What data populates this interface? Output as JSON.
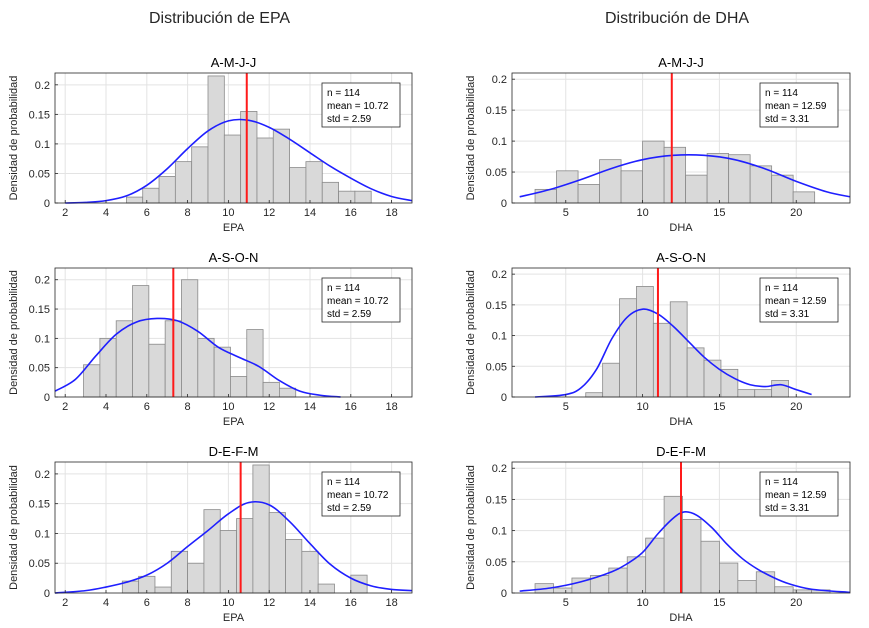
{
  "titles": {
    "left": "Distribución de EPA",
    "right": "Distribución de DHA"
  },
  "chart_data": [
    {
      "type": "bar",
      "title": "A-M-J-J",
      "xlabel": "EPA",
      "ylabel": "Densidad de probabilidad",
      "xlim": [
        1.5,
        19
      ],
      "ylim": [
        0,
        0.22
      ],
      "xticks": [
        2,
        4,
        6,
        8,
        10,
        12,
        14,
        16,
        18
      ],
      "yticks": [
        0,
        0.05,
        0.1,
        0.15,
        0.2
      ],
      "bin_edges": [
        5,
        5.8,
        6.6,
        7.4,
        8.2,
        9.0,
        9.8,
        10.6,
        11.4,
        12.2,
        13.0,
        13.8,
        14.6,
        15.4,
        16.2,
        17.0
      ],
      "values": [
        0.01,
        0.025,
        0.045,
        0.07,
        0.095,
        0.215,
        0.115,
        0.155,
        0.11,
        0.125,
        0.06,
        0.07,
        0.035,
        0.02,
        0.02
      ],
      "kde": {
        "x": [
          2,
          3,
          4,
          5,
          6,
          7,
          8,
          9,
          10,
          11,
          12,
          13,
          14,
          15,
          16,
          17,
          18,
          19
        ],
        "y": [
          0,
          0.001,
          0.004,
          0.012,
          0.03,
          0.058,
          0.092,
          0.122,
          0.139,
          0.14,
          0.128,
          0.108,
          0.085,
          0.062,
          0.042,
          0.024,
          0.011,
          0.004
        ]
      },
      "mean_line": 10.9,
      "stats": [
        "n = 114",
        "mean = 10.72",
        "std = 2.59"
      ]
    },
    {
      "type": "bar",
      "title": "A-M-J-J",
      "xlabel": "DHA",
      "ylabel": "Densidad de probabilidad",
      "xlim": [
        1.5,
        23.5
      ],
      "ylim": [
        0,
        0.21
      ],
      "xticks": [
        5,
        10,
        15,
        20
      ],
      "yticks": [
        0,
        0.05,
        0.1,
        0.15,
        0.2
      ],
      "bin_edges": [
        3,
        4.4,
        5.8,
        7.2,
        8.6,
        10.0,
        11.4,
        12.8,
        14.2,
        15.6,
        17.0,
        18.4,
        19.8,
        21.2
      ],
      "values": [
        0.022,
        0.052,
        0.03,
        0.07,
        0.052,
        0.1,
        0.09,
        0.045,
        0.08,
        0.078,
        0.06,
        0.045,
        0.018,
        0.021
      ],
      "kde": {
        "x": [
          2,
          4,
          6,
          8,
          10,
          12,
          14,
          16,
          18,
          20,
          22,
          23.5
        ],
        "y": [
          0.01,
          0.022,
          0.038,
          0.056,
          0.07,
          0.077,
          0.077,
          0.07,
          0.055,
          0.035,
          0.018,
          0.01
        ]
      },
      "mean_line": 11.9,
      "stats": [
        "n = 114",
        "mean = 12.59",
        "std = 3.31"
      ]
    },
    {
      "type": "bar",
      "title": "A-S-O-N",
      "xlabel": "EPA",
      "ylabel": "Densidad de probabilidad",
      "xlim": [
        1.5,
        19
      ],
      "ylim": [
        0,
        0.22
      ],
      "xticks": [
        2,
        4,
        6,
        8,
        10,
        12,
        14,
        16,
        18
      ],
      "yticks": [
        0,
        0.05,
        0.1,
        0.15,
        0.2
      ],
      "bin_edges": [
        2.9,
        3.7,
        4.5,
        5.3,
        6.1,
        6.9,
        7.7,
        8.5,
        9.3,
        10.1,
        10.9,
        11.7,
        12.5,
        13.3
      ],
      "values": [
        0.055,
        0.1,
        0.13,
        0.19,
        0.09,
        0.13,
        0.2,
        0.1,
        0.085,
        0.035,
        0.115,
        0.025,
        0.015
      ],
      "kde": {
        "x": [
          1.5,
          2.5,
          3.5,
          4.5,
          5.5,
          6.5,
          7.5,
          8.5,
          9.5,
          10.5,
          11.5,
          12.5,
          13.5,
          14.5,
          15.5
        ],
        "y": [
          0.01,
          0.03,
          0.07,
          0.107,
          0.128,
          0.134,
          0.13,
          0.112,
          0.085,
          0.068,
          0.052,
          0.028,
          0.01,
          0.003,
          0
        ]
      },
      "mean_line": 7.3,
      "stats": [
        "n = 114",
        "mean = 10.72",
        "std = 2.59"
      ]
    },
    {
      "type": "bar",
      "title": "A-S-O-N",
      "xlabel": "DHA",
      "ylabel": "Densidad de probabilidad",
      "xlim": [
        1.5,
        23.5
      ],
      "ylim": [
        0,
        0.21
      ],
      "xticks": [
        5,
        10,
        15,
        20
      ],
      "yticks": [
        0,
        0.05,
        0.1,
        0.15,
        0.2
      ],
      "bin_edges": [
        6.3,
        7.4,
        8.5,
        9.6,
        10.7,
        11.8,
        12.9,
        14.0,
        15.1,
        16.2,
        17.3,
        18.4,
        19.5
      ],
      "values": [
        0.007,
        0.055,
        0.16,
        0.18,
        0.12,
        0.155,
        0.08,
        0.06,
        0.045,
        0.012,
        0.012,
        0.027
      ],
      "kde": {
        "x": [
          3,
          5,
          6,
          7,
          8,
          9,
          10,
          11,
          12,
          13,
          14,
          15,
          16,
          17,
          18,
          19,
          20,
          21
        ],
        "y": [
          0,
          0.004,
          0.015,
          0.045,
          0.095,
          0.13,
          0.143,
          0.135,
          0.115,
          0.09,
          0.065,
          0.045,
          0.03,
          0.02,
          0.017,
          0.02,
          0.012,
          0.004
        ]
      },
      "mean_line": 11.0,
      "stats": [
        "n = 114",
        "mean = 12.59",
        "std = 3.31"
      ]
    },
    {
      "type": "bar",
      "title": "D-E-F-M",
      "xlabel": "EPA",
      "ylabel": "Densidad de probabilidad",
      "xlim": [
        1.5,
        19
      ],
      "ylim": [
        0,
        0.22
      ],
      "xticks": [
        2,
        4,
        6,
        8,
        10,
        12,
        14,
        16,
        18
      ],
      "yticks": [
        0,
        0.05,
        0.1,
        0.15,
        0.2
      ],
      "bin_edges": [
        4.8,
        5.6,
        6.4,
        7.2,
        8.0,
        8.8,
        9.6,
        10.4,
        11.2,
        12.0,
        12.8,
        13.6,
        14.4,
        15.2,
        16.0,
        16.8,
        17.6
      ],
      "values": [
        0.02,
        0.028,
        0.01,
        0.07,
        0.05,
        0.14,
        0.105,
        0.125,
        0.215,
        0.135,
        0.09,
        0.07,
        0.015,
        0.0,
        0.03,
        0.0
      ],
      "kde": {
        "x": [
          1.5,
          3,
          4,
          5,
          6,
          7,
          8,
          9,
          10,
          11,
          12,
          13,
          14,
          15,
          16,
          17,
          18,
          19
        ],
        "y": [
          0,
          0.004,
          0.01,
          0.018,
          0.03,
          0.05,
          0.078,
          0.105,
          0.133,
          0.152,
          0.148,
          0.12,
          0.083,
          0.048,
          0.025,
          0.012,
          0.006,
          0.004
        ]
      },
      "mean_line": 10.6,
      "stats": [
        "n = 114",
        "mean = 10.72",
        "std = 2.59"
      ]
    },
    {
      "type": "bar",
      "title": "D-E-F-M",
      "xlabel": "DHA",
      "ylabel": "Densidad de probabilidad",
      "xlim": [
        1.5,
        23.5
      ],
      "ylim": [
        0,
        0.21
      ],
      "xticks": [
        5,
        10,
        15,
        20
      ],
      "yticks": [
        0,
        0.05,
        0.1,
        0.15,
        0.2
      ],
      "bin_edges": [
        3,
        4.2,
        5.4,
        6.6,
        7.8,
        9.0,
        10.2,
        11.4,
        12.6,
        13.8,
        15.0,
        16.2,
        17.4,
        18.6,
        19.8,
        21.0,
        22.2
      ],
      "values": [
        0.015,
        0.008,
        0.024,
        0.028,
        0.04,
        0.058,
        0.088,
        0.155,
        0.118,
        0.083,
        0.048,
        0.02,
        0.034,
        0.01,
        0.005,
        0.005
      ],
      "kde": {
        "x": [
          2,
          4,
          6,
          8,
          9,
          10,
          11,
          12,
          12.7,
          13.5,
          14.5,
          15.5,
          16.5,
          17.5,
          18.5,
          19.5,
          21,
          23.5
        ],
        "y": [
          0.003,
          0.008,
          0.018,
          0.034,
          0.047,
          0.065,
          0.095,
          0.12,
          0.13,
          0.125,
          0.105,
          0.078,
          0.055,
          0.038,
          0.025,
          0.015,
          0.006,
          0.001
        ]
      },
      "mean_line": 12.5,
      "stats": [
        "n = 114",
        "mean = 12.59",
        "std = 3.31"
      ]
    }
  ]
}
